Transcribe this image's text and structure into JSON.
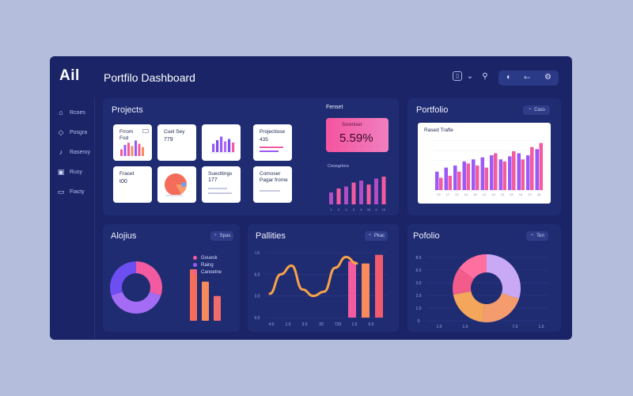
{
  "app": {
    "logo": "Ail",
    "title": "Portfilo Dashboard"
  },
  "topbar": {
    "icons": [
      "calendar-icon",
      "chevron-down-icon",
      "user-icon"
    ],
    "pill_icons": [
      "moon-icon",
      "back-arrow-icon",
      "settings-icon"
    ],
    "pill_glyphs": [
      "◖",
      "⬸",
      "⚙"
    ]
  },
  "sidebar": {
    "items": [
      {
        "label": "Rcoes",
        "icon": "home-icon",
        "glyph": "⌂"
      },
      {
        "label": "Posgra",
        "icon": "diamond-icon",
        "glyph": "◇"
      },
      {
        "label": "Raseroy",
        "icon": "chart-icon",
        "glyph": "♪"
      },
      {
        "label": "Rusy",
        "icon": "grid-icon",
        "glyph": "▣"
      },
      {
        "label": "Fiacty",
        "icon": "folder-icon",
        "glyph": "▭"
      }
    ]
  },
  "projects": {
    "title": "Projects",
    "tiles": [
      {
        "label": "Frrom",
        "sub": "Fod",
        "value": "",
        "kind": "bars"
      },
      {
        "label": "Cuel Sey",
        "sub": "",
        "value": "779",
        "kind": "text"
      },
      {
        "label": "",
        "sub": "",
        "value": "",
        "kind": "purple-bars"
      },
      {
        "label": "Projectiose",
        "sub": "435",
        "value": "",
        "kind": "lines"
      },
      {
        "label": "Fracet",
        "sub": "",
        "value": "t00",
        "kind": "text"
      },
      {
        "label": "",
        "sub": "",
        "value": "",
        "kind": "pie"
      },
      {
        "label": "Suecttings",
        "sub": "",
        "value": "177",
        "kind": "settings"
      },
      {
        "label": "Comoser",
        "sub": "Pagar frome",
        "value": "",
        "kind": "lines2"
      }
    ],
    "stat": {
      "header": "Fenset",
      "label": "Soreniser",
      "value": "5.59%"
    },
    "mini_chart": {
      "label": "Cesegrtors",
      "values": [
        6,
        8,
        9,
        11,
        12,
        10,
        13,
        14
      ],
      "ticks": [
        "1",
        "3",
        "4",
        "5",
        "6",
        "35",
        "6",
        "10"
      ]
    }
  },
  "portfolio_top": {
    "title": "Portfolio",
    "button": "Cass",
    "chart_title": "Rased Trafle",
    "y_ticks": [
      "",
      "",
      "",
      "",
      "",
      ""
    ],
    "x_ticks": [
      "22",
      "17",
      "22",
      "16",
      "26",
      "12",
      "18",
      "23",
      "33",
      "16",
      "22",
      "28"
    ],
    "series": [
      {
        "name": "purple",
        "color": "#9b59f5",
        "values": [
          18,
          22,
          24,
          28,
          30,
          32,
          34,
          30,
          33,
          36,
          34,
          40
        ]
      },
      {
        "name": "pink",
        "color": "#f25ba0",
        "values": [
          12,
          14,
          18,
          26,
          24,
          22,
          36,
          28,
          38,
          30,
          42,
          46
        ]
      }
    ]
  },
  "alojius": {
    "title": "Alojius",
    "button": "Spax",
    "legend": [
      {
        "label": "Gouesk",
        "color": "#f25ba0"
      },
      {
        "label": "Raing",
        "color": "#9b59f5"
      },
      {
        "label": "Canoetne",
        "color": "#f25ba0"
      }
    ],
    "donut": [
      {
        "value": 30,
        "color": "#f25ba0"
      },
      {
        "value": 40,
        "color": "#a46cf5"
      },
      {
        "value": 30,
        "color": "#6d4ef0"
      }
    ],
    "bars": [
      {
        "value": 50,
        "color": "#f46d5b"
      },
      {
        "value": 38,
        "color": "#f88a5b"
      },
      {
        "value": 24,
        "color": "#f36c6c"
      }
    ]
  },
  "pallities": {
    "title": "Pallities",
    "button": "Pkac",
    "y_ticks": [
      "I.0",
      "6.0",
      "3.0",
      "0.0"
    ],
    "x_ticks": [
      "4.0",
      "1.0",
      "3.0",
      "20",
      "T20",
      "1.0",
      "6.0"
    ],
    "line_values": [
      1.1,
      2.0,
      2.4,
      1.3,
      1.0,
      1.2,
      2.3,
      2.8,
      2.5
    ],
    "bars": [
      {
        "value": 2.6,
        "color": "#f25ba0"
      },
      {
        "value": 2.5,
        "color": "#f88a5b"
      },
      {
        "value": 2.9,
        "color": "#f25b6e"
      }
    ]
  },
  "portfolio_bottom": {
    "title": "Pofolio",
    "button": "Ten",
    "y_ticks": [
      "8.0",
      "6.0",
      "3.0",
      "2.0",
      "1.0",
      "0"
    ],
    "x_ticks": [
      "1.0",
      "1.0",
      "7.0",
      "1.0"
    ],
    "donut": [
      {
        "value": 30,
        "color": "#c9a9f5"
      },
      {
        "value": 22,
        "color": "#f59c6e"
      },
      {
        "value": 20,
        "color": "#f4a65b"
      },
      {
        "value": 13,
        "color": "#f25b8a"
      },
      {
        "value": 15,
        "color": "#ff6f9f"
      }
    ]
  },
  "colors": {
    "panel": "#202c72",
    "app": "#1a2466",
    "accent_pink": "#f25ba0",
    "accent_purple": "#9b59f5",
    "accent_orange": "#f88a5b"
  }
}
